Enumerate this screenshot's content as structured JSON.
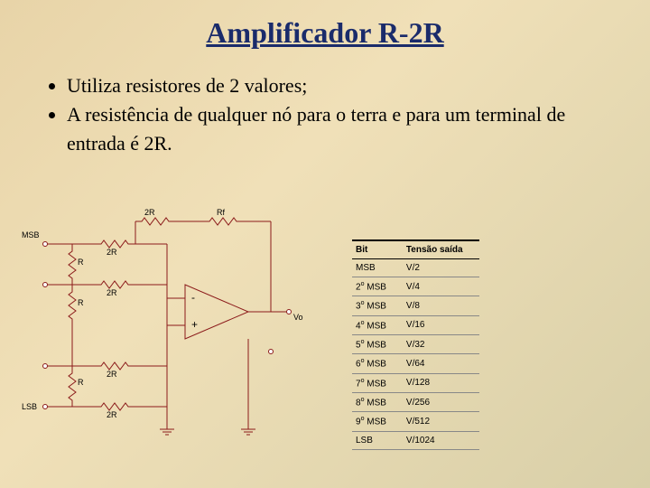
{
  "title": "Amplificador R-2R",
  "bullets": [
    "Utiliza resistores de 2 valores;",
    "A resistência de qualquer nó para o terra e para um terminal de entrada é 2R."
  ],
  "diagram": {
    "labels": {
      "msb": "MSB",
      "lsb": "LSB",
      "r": "R",
      "two_r": "2R",
      "rf": "Rf",
      "minus": "-",
      "plus": "+",
      "vo": "Vo"
    },
    "colors": {
      "wire": "#8b1a1a",
      "text": "#000000"
    }
  },
  "table": {
    "headers": [
      "Bit",
      "Tensão saída"
    ],
    "rows": [
      [
        "MSB",
        "V/2"
      ],
      [
        "2o MSB",
        "V/4"
      ],
      [
        "3o MSB",
        "V/8"
      ],
      [
        "4o MSB",
        "V/16"
      ],
      [
        "5o MSB",
        "V/32"
      ],
      [
        "6o MSB",
        "V/64"
      ],
      [
        "7o MSB",
        "V/128"
      ],
      [
        "8o MSB",
        "V/256"
      ],
      [
        "9o MSB",
        "V/512"
      ],
      [
        "LSB",
        "V/1024"
      ]
    ]
  }
}
